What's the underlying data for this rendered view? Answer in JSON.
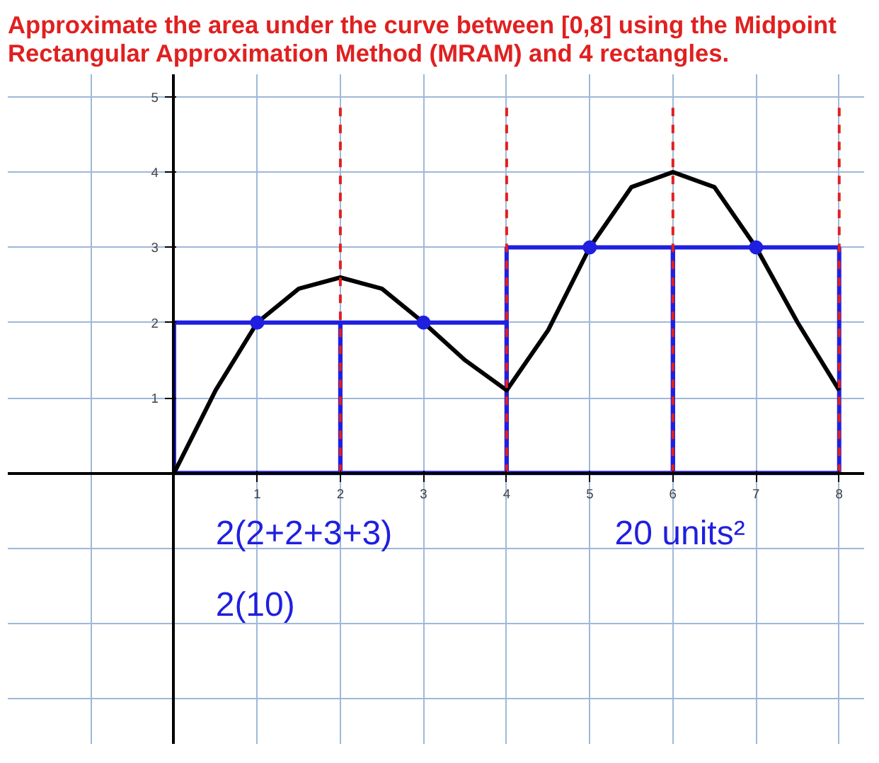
{
  "chart_data": {
    "type": "line",
    "title": "Approximate the area under the curve between [0,8] using the Midpoint Rectangular Approximation Method (MRAM) and 4 rectangles.",
    "series": [
      {
        "type": "bar",
        "x": [
          1,
          3,
          5,
          7
        ],
        "values": [
          2,
          2,
          3,
          3
        ],
        "color": "#1f1fe0"
      },
      {
        "x": [
          0,
          0.5,
          1,
          1.5,
          2,
          2.5,
          3,
          3.5,
          4,
          4.5,
          5,
          5.5,
          6,
          6.5,
          7,
          7.5,
          8
        ],
        "values": [
          0,
          1.1,
          2,
          2.45,
          2.6,
          2.45,
          2,
          1.5,
          1.1,
          1.9,
          3,
          3.8,
          4,
          3.8,
          3,
          2,
          1.1
        ],
        "color": "#000000"
      },
      {
        "type": "scatter",
        "x": [
          1,
          3,
          5,
          7
        ],
        "values": [
          2,
          2,
          3,
          3
        ],
        "color": "#1f1fe0",
        "marker": "circle"
      }
    ],
    "xlim": [
      -2,
      8.3
    ],
    "ylim": [
      -3.6,
      5.3
    ],
    "xticks": [
      1,
      2,
      3,
      4,
      5,
      6,
      7,
      8
    ],
    "yticks": [
      1,
      2,
      3,
      4,
      5
    ],
    "grid": true,
    "ref_lines": [
      {
        "axis": "x",
        "value": 2,
        "color": "#e02020",
        "line_style": "dashed"
      },
      {
        "axis": "x",
        "value": 4,
        "color": "#e02020",
        "line_style": "dashed"
      },
      {
        "axis": "x",
        "value": 6,
        "color": "#e02020",
        "line_style": "dashed"
      },
      {
        "axis": "x",
        "value": 8,
        "color": "#e02020",
        "line_style": "dashed"
      }
    ],
    "annotations": [
      "2(2+2+3+3)",
      "2(10)",
      "20 units²"
    ]
  }
}
